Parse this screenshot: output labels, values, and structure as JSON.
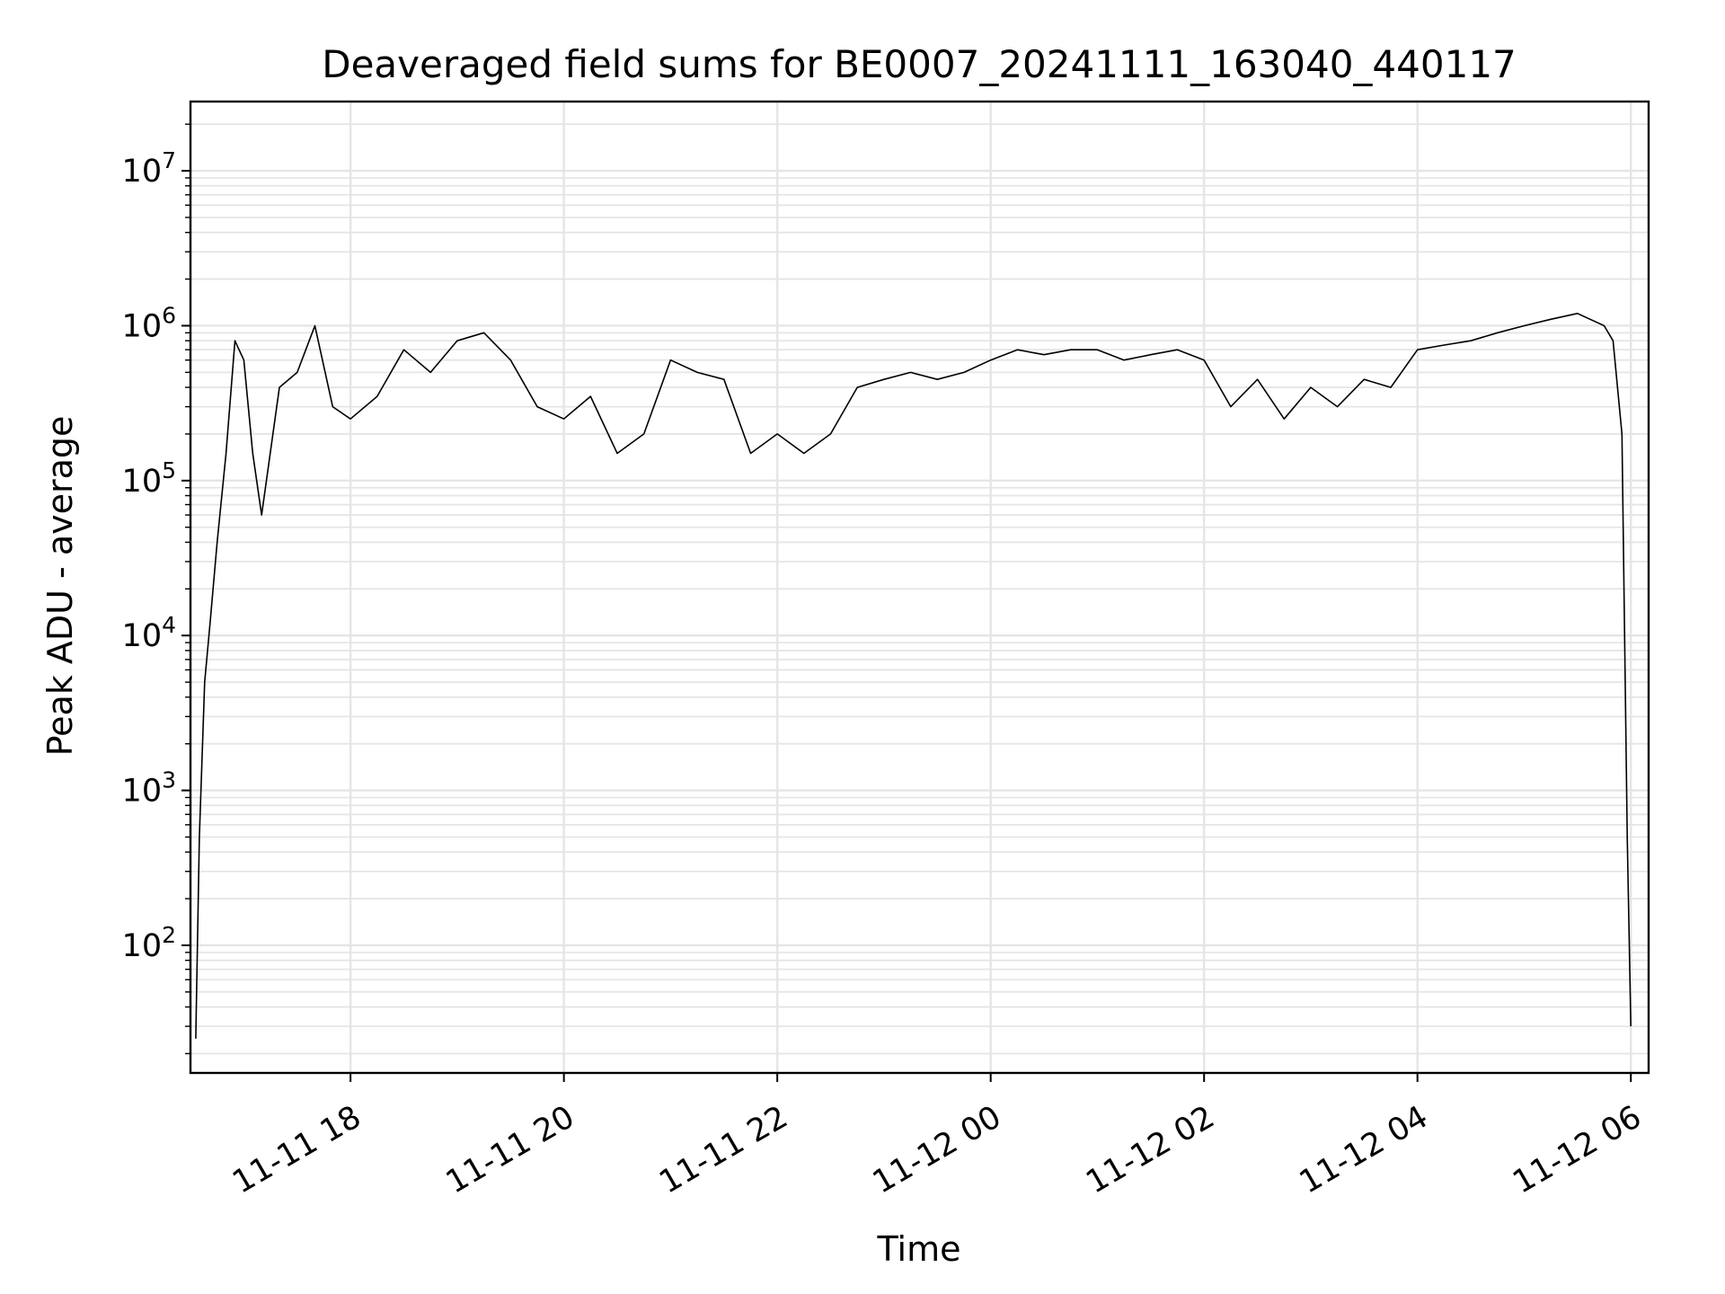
{
  "chart_data": {
    "type": "line",
    "title": "Deaveraged field sums for BE0007_20241111_163040_440117",
    "xlabel": "Time",
    "ylabel": "Peak ADU - average",
    "x_scale": "time",
    "y_scale": "log",
    "xlim": [
      "2024-11-11 16:30",
      "2024-11-12 06:10"
    ],
    "ylim": [
      15,
      28000000
    ],
    "grid": true,
    "x_ticks": [
      "11-11 18",
      "11-11 20",
      "11-11 22",
      "11-12 00",
      "11-12 02",
      "11-12 04",
      "11-12 06"
    ],
    "y_ticks": [
      {
        "base": "10",
        "exp": "2"
      },
      {
        "base": "10",
        "exp": "3"
      },
      {
        "base": "10",
        "exp": "4"
      },
      {
        "base": "10",
        "exp": "5"
      },
      {
        "base": "10",
        "exp": "6"
      },
      {
        "base": "10",
        "exp": "7"
      }
    ],
    "line_color": "#000000",
    "grid_color": "#e5e5e5",
    "series": [
      {
        "x": [
          "2024-11-11 16:33",
          "2024-11-11 16:35",
          "2024-11-11 16:38",
          "2024-11-11 16:41",
          "2024-11-11 16:45",
          "2024-11-11 16:50",
          "2024-11-11 16:55",
          "2024-11-11 17:00",
          "2024-11-11 17:05",
          "2024-11-11 17:10",
          "2024-11-11 17:20",
          "2024-11-11 17:30",
          "2024-11-11 17:40",
          "2024-11-11 17:50",
          "2024-11-11 18:00",
          "2024-11-11 18:15",
          "2024-11-11 18:30",
          "2024-11-11 18:45",
          "2024-11-11 19:00",
          "2024-11-11 19:15",
          "2024-11-11 19:30",
          "2024-11-11 19:45",
          "2024-11-11 20:00",
          "2024-11-11 20:15",
          "2024-11-11 20:30",
          "2024-11-11 20:45",
          "2024-11-11 21:00",
          "2024-11-11 21:15",
          "2024-11-11 21:30",
          "2024-11-11 21:45",
          "2024-11-11 22:00",
          "2024-11-11 22:15",
          "2024-11-11 22:30",
          "2024-11-11 22:45",
          "2024-11-11 23:00",
          "2024-11-11 23:15",
          "2024-11-11 23:30",
          "2024-11-11 23:45",
          "2024-11-12 00:00",
          "2024-11-12 00:15",
          "2024-11-12 00:30",
          "2024-11-12 00:45",
          "2024-11-12 01:00",
          "2024-11-12 01:15",
          "2024-11-12 01:30",
          "2024-11-12 01:45",
          "2024-11-12 02:00",
          "2024-11-12 02:15",
          "2024-11-12 02:30",
          "2024-11-12 02:45",
          "2024-11-12 03:00",
          "2024-11-12 03:15",
          "2024-11-12 03:30",
          "2024-11-12 03:45",
          "2024-11-12 04:00",
          "2024-11-12 04:15",
          "2024-11-12 04:30",
          "2024-11-12 04:45",
          "2024-11-12 05:00",
          "2024-11-12 05:15",
          "2024-11-12 05:30",
          "2024-11-12 05:45",
          "2024-11-12 05:50",
          "2024-11-12 05:55",
          "2024-11-12 05:58",
          "2024-11-12 06:00"
        ],
        "y": [
          25,
          500,
          5000,
          12000,
          40000,
          150000,
          800000,
          600000,
          150000,
          60000,
          400000,
          500000,
          1000000,
          300000,
          250000,
          350000,
          700000,
          500000,
          800000,
          900000,
          600000,
          300000,
          250000,
          350000,
          150000,
          200000,
          600000,
          500000,
          450000,
          150000,
          200000,
          150000,
          200000,
          400000,
          450000,
          500000,
          450000,
          500000,
          600000,
          700000,
          650000,
          700000,
          700000,
          600000,
          650000,
          700000,
          600000,
          300000,
          450000,
          250000,
          400000,
          300000,
          450000,
          400000,
          700000,
          750000,
          800000,
          900000,
          1000000,
          1100000,
          1200000,
          1000000,
          800000,
          200000,
          500,
          30
        ]
      }
    ]
  }
}
